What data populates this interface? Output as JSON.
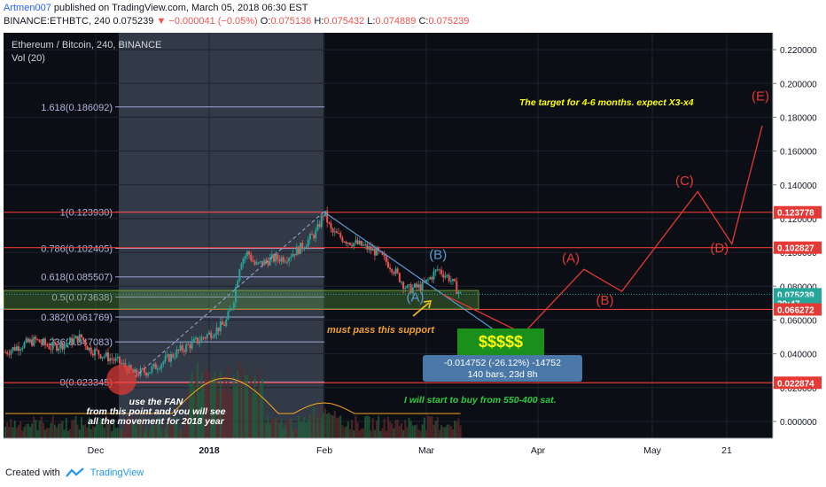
{
  "header": {
    "author": "Artmen007",
    "published_text": "published on TradingView.com, March 05, 2018 06:30 EST",
    "symbol": "BINANCE:ETHBTC, 240",
    "last": "0.075239",
    "change": "−0.000041 (−0.05%)",
    "o_label": "O:",
    "o": "0.075136",
    "h_label": "H:",
    "h": "0.075432",
    "l_label": "L:",
    "l": "0.074889",
    "c_label": "C:",
    "c": "0.075239"
  },
  "legend": {
    "title": "Ethereum / Bitcoin, 240, BINANCE",
    "volume": "Vol (20)"
  },
  "colors": {
    "up": "#26a69a",
    "down": "#ef5350",
    "fib": "#9fa8da",
    "red_line": "#e53935",
    "shade": "#7b8aa6",
    "support_band": "#5d9b3b",
    "yellow_text": "#ffff00"
  },
  "chart_data": {
    "type": "line",
    "title": "Ethereum / Bitcoin, 240, BINANCE",
    "ylim": [
      -0.01,
      0.23
    ],
    "x_ticks": [
      "Dec",
      "2018",
      "Feb",
      "Mar",
      "Apr",
      "May",
      "21"
    ],
    "y_ticks": [
      "0.220000",
      "0.200000",
      "0.180000",
      "0.160000",
      "0.140000",
      "0.120000",
      "0.100000",
      "0.080000",
      "0.060000",
      "0.040000",
      "0.020000",
      "0.000000"
    ],
    "y_tick_values": [
      0.22,
      0.2,
      0.18,
      0.16,
      0.14,
      0.12,
      0.1,
      0.08,
      0.06,
      0.04,
      0.02,
      0.0
    ],
    "price_labels": [
      {
        "text": "0.123778",
        "value": 0.123778,
        "color": "#e53935"
      },
      {
        "text": "0.102827",
        "value": 0.102827,
        "color": "#e53935"
      },
      {
        "text": "0.075239",
        "value": 0.075239,
        "color": "#26a69a"
      },
      {
        "text": "29:47",
        "value": 0.07,
        "color": "#26a69a"
      },
      {
        "text": "0.066272",
        "value": 0.066272,
        "color": "#e53935"
      },
      {
        "text": "0.022874",
        "value": 0.022874,
        "color": "#e53935"
      }
    ],
    "fib_levels": [
      {
        "label": "1.618(0.186092)",
        "value": 0.186092
      },
      {
        "label": "1(0.123930)",
        "value": 0.12393
      },
      {
        "label": "0.786(0.102405)",
        "value": 0.102405
      },
      {
        "label": "0.618(0.085507)",
        "value": 0.085507
      },
      {
        "label": "0.5(0.073638)",
        "value": 0.073638
      },
      {
        "label": "0.382(0.061769)",
        "value": 0.061769
      },
      {
        "label": "0.236(0.047083)",
        "value": 0.047083
      },
      {
        "label": "0(0.023345)",
        "value": 0.023345
      }
    ],
    "horizontal_lines": [
      0.123778,
      0.102827,
      0.066272,
      0.022874
    ],
    "price_series": [
      [
        0.0,
        0.041
      ],
      [
        0.02,
        0.045
      ],
      [
        0.04,
        0.048
      ],
      [
        0.06,
        0.044
      ],
      [
        0.08,
        0.046
      ],
      [
        0.1,
        0.05
      ],
      [
        0.11,
        0.043
      ],
      [
        0.13,
        0.039
      ],
      [
        0.15,
        0.035
      ],
      [
        0.17,
        0.028
      ],
      [
        0.19,
        0.03
      ],
      [
        0.21,
        0.036
      ],
      [
        0.23,
        0.042
      ],
      [
        0.25,
        0.047
      ],
      [
        0.27,
        0.052
      ],
      [
        0.29,
        0.058
      ],
      [
        0.3,
        0.07
      ],
      [
        0.31,
        0.095
      ],
      [
        0.32,
        0.1
      ],
      [
        0.33,
        0.092
      ],
      [
        0.35,
        0.096
      ],
      [
        0.37,
        0.097
      ],
      [
        0.39,
        0.103
      ],
      [
        0.41,
        0.112
      ],
      [
        0.42,
        0.124
      ],
      [
        0.43,
        0.112
      ],
      [
        0.45,
        0.107
      ],
      [
        0.47,
        0.104
      ],
      [
        0.49,
        0.1
      ],
      [
        0.51,
        0.091
      ],
      [
        0.53,
        0.078
      ],
      [
        0.55,
        0.08
      ],
      [
        0.57,
        0.09
      ],
      [
        0.585,
        0.085
      ],
      [
        0.6,
        0.075
      ]
    ],
    "projection": [
      [
        0.58,
        0.075
      ],
      [
        0.685,
        0.052
      ],
      [
        0.765,
        0.09
      ],
      [
        0.815,
        0.077
      ],
      [
        0.915,
        0.136
      ],
      [
        0.96,
        0.105
      ],
      [
        1.0,
        0.175
      ]
    ],
    "wave_labels": [
      {
        "text": "(A)",
        "x": 0.545,
        "value": 0.071,
        "color": "#5b9bd5"
      },
      {
        "text": "(B)",
        "x": 0.575,
        "value": 0.096,
        "color": "#5b9bd5"
      },
      {
        "text": "(A)",
        "x": 0.75,
        "value": 0.094,
        "color": "#e53935"
      },
      {
        "text": "(B)",
        "x": 0.795,
        "value": 0.069,
        "color": "#e53935"
      },
      {
        "text": "(C)",
        "x": 0.9,
        "value": 0.14,
        "color": "#e53935"
      },
      {
        "text": "(D)",
        "x": 0.946,
        "value": 0.1,
        "color": "#e53935"
      },
      {
        "text": "(E)",
        "x": 1.0,
        "value": 0.19,
        "color": "#e53935"
      }
    ],
    "annotations": {
      "target": "The target for 4-6 months. expect X3-x4",
      "support": "must pass this support",
      "buy_box": "$$$$$",
      "buy": "I will start to buy from 550-400 sat.",
      "fan_note": "use the FAN\nfrom this point  and you will see\nall the movement for 2018 year",
      "measure_line1": "-0.014752 (-26.12%) -14752",
      "measure_line2": "140 bars, 23d 8h"
    }
  },
  "footer": {
    "created_with": "Created with",
    "brand": "TradingView"
  }
}
